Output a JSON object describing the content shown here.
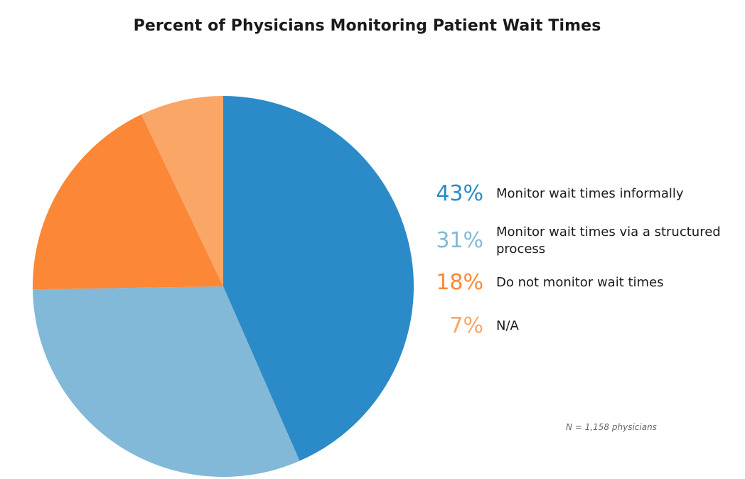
{
  "chart_data": {
    "type": "pie",
    "title": "Percent of Physicians Monitoring Patient Wait Times",
    "categories": [
      "Monitor wait times informally",
      "Monitor wait times via a structured process",
      "Do not monitor wait times",
      "N/A"
    ],
    "values": [
      43,
      31,
      18,
      7
    ],
    "labels": [
      "43%",
      "31%",
      "18%",
      "7%"
    ],
    "colors": [
      "#2b8bc8",
      "#82b8d8",
      "#fc8737",
      "#f9a667"
    ],
    "legend_position": "right",
    "note": "N = 1,158 physicians"
  }
}
